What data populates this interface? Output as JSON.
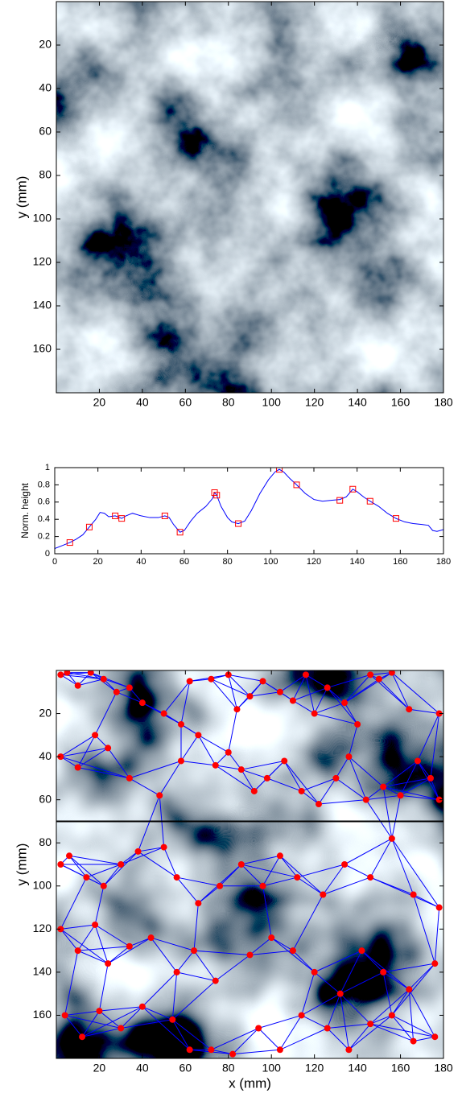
{
  "chart_data": [
    {
      "type": "image",
      "ylabel": "y (mm)",
      "xlim": [
        0,
        180
      ],
      "ylim": [
        0,
        180
      ],
      "xticks": [
        20,
        40,
        60,
        80,
        100,
        120,
        140,
        160,
        180
      ],
      "yticks": [
        20,
        40,
        60,
        80,
        100,
        120,
        140,
        160
      ]
    },
    {
      "type": "line",
      "ylabel": "Norm. height",
      "xlim": [
        0,
        180
      ],
      "ylim": [
        0,
        1
      ],
      "xticks": [
        0,
        20,
        40,
        60,
        80,
        100,
        120,
        140,
        160,
        180
      ],
      "yticks": [
        0,
        0.2,
        0.4,
        0.6,
        0.8,
        1
      ],
      "color": "#0000ff",
      "x": [
        0,
        4,
        7,
        10,
        13,
        16,
        19,
        21,
        23,
        25,
        28,
        31,
        33,
        36,
        40,
        44,
        48,
        51,
        53,
        55,
        58,
        60,
        63,
        66,
        70,
        73,
        74,
        75,
        77,
        80,
        82,
        85,
        88,
        91,
        95,
        99,
        102,
        104,
        106,
        109,
        112,
        116,
        120,
        124,
        128,
        132,
        135,
        138,
        140,
        143,
        146,
        150,
        154,
        158,
        162,
        166,
        170,
        173,
        175,
        177,
        180
      ],
      "values": [
        0.06,
        0.1,
        0.13,
        0.17,
        0.22,
        0.31,
        0.4,
        0.48,
        0.47,
        0.43,
        0.44,
        0.41,
        0.44,
        0.47,
        0.44,
        0.42,
        0.42,
        0.44,
        0.42,
        0.34,
        0.25,
        0.27,
        0.38,
        0.47,
        0.55,
        0.64,
        0.71,
        0.68,
        0.55,
        0.42,
        0.37,
        0.35,
        0.38,
        0.5,
        0.7,
        0.86,
        0.95,
        0.98,
        0.95,
        0.87,
        0.8,
        0.7,
        0.63,
        0.61,
        0.62,
        0.63,
        0.66,
        0.75,
        0.72,
        0.66,
        0.61,
        0.55,
        0.47,
        0.41,
        0.37,
        0.35,
        0.34,
        0.33,
        0.27,
        0.26,
        0.28
      ],
      "marker_color": "#ff0000",
      "marker_x": [
        7,
        16,
        28,
        31,
        51,
        58,
        74,
        75,
        85,
        104,
        112,
        132,
        138,
        146,
        158
      ],
      "marker_values": [
        0.13,
        0.31,
        0.44,
        0.41,
        0.44,
        0.25,
        0.71,
        0.68,
        0.35,
        0.98,
        0.8,
        0.62,
        0.75,
        0.61,
        0.41
      ]
    },
    {
      "type": "scatter",
      "xlabel": "x (mm)",
      "ylabel": "y (mm)",
      "xlim": [
        0,
        180
      ],
      "ylim": [
        0,
        180
      ],
      "xticks": [
        20,
        40,
        60,
        80,
        100,
        120,
        140,
        160,
        180
      ],
      "yticks": [
        20,
        40,
        60,
        80,
        100,
        120,
        140,
        160
      ],
      "color": "#ff0000",
      "edge_color": "#0000ff",
      "hline": 70,
      "hline_color": "#000000",
      "x": [
        2,
        5,
        10,
        16,
        22,
        28,
        34,
        40,
        50,
        58,
        62,
        72,
        80,
        84,
        90,
        96,
        104,
        110,
        116,
        120,
        126,
        134,
        140,
        146,
        150,
        156,
        164,
        178,
        2,
        10,
        18,
        24,
        34,
        48,
        58,
        66,
        74,
        80,
        86,
        92,
        98,
        106,
        114,
        122,
        130,
        136,
        144,
        152,
        160,
        168,
        174,
        178,
        2,
        6,
        14,
        22,
        30,
        38,
        50,
        56,
        66,
        76,
        86,
        96,
        104,
        112,
        124,
        134,
        146,
        156,
        166,
        178,
        2,
        10,
        18,
        24,
        34,
        44,
        56,
        64,
        74,
        90,
        100,
        110,
        120,
        132,
        142,
        152,
        164,
        176,
        4,
        12,
        20,
        30,
        40,
        54,
        62,
        72,
        82,
        94,
        104,
        114,
        126,
        136,
        146,
        156,
        166,
        176
      ],
      "values": [
        2,
        1,
        7,
        1,
        4,
        10,
        8,
        15,
        20,
        25,
        5,
        4,
        2,
        18,
        12,
        5,
        10,
        14,
        2,
        20,
        8,
        15,
        25,
        2,
        4,
        1,
        18,
        20,
        40,
        45,
        30,
        36,
        50,
        58,
        42,
        30,
        44,
        38,
        46,
        56,
        50,
        42,
        56,
        62,
        50,
        40,
        60,
        54,
        58,
        42,
        50,
        60,
        90,
        86,
        96,
        100,
        90,
        84,
        82,
        96,
        108,
        100,
        90,
        100,
        86,
        96,
        104,
        90,
        96,
        78,
        104,
        110,
        120,
        130,
        118,
        136,
        128,
        124,
        140,
        130,
        144,
        132,
        124,
        130,
        140,
        150,
        130,
        140,
        148,
        136,
        160,
        170,
        158,
        166,
        156,
        162,
        176,
        176,
        178,
        166,
        176,
        160,
        166,
        176,
        164,
        160,
        172,
        170
      ]
    }
  ]
}
